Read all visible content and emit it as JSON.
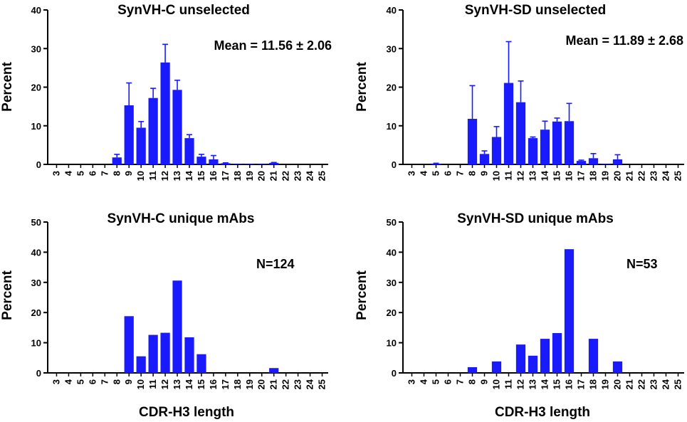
{
  "colors": {
    "bar": "#1a1aff",
    "axis": "#000000"
  },
  "chart_data": [
    {
      "type": "bar",
      "title": "SynVH-C unselected",
      "ylabel": "Percent",
      "xlabel": "",
      "ylim": [
        0,
        40
      ],
      "yticks": [
        0,
        10,
        20,
        30,
        40
      ],
      "annotation": "Mean = 11.56 ± 2.06",
      "categories": [
        "3",
        "4",
        "5",
        "6",
        "7",
        "8",
        "9",
        "10",
        "11",
        "12",
        "13",
        "14",
        "15",
        "16",
        "17",
        "18",
        "19",
        "20",
        "21",
        "22",
        "23",
        "24",
        "25"
      ],
      "values": [
        0,
        0,
        0,
        0,
        0,
        1.8,
        15.3,
        9.5,
        17.2,
        26.4,
        19.3,
        6.8,
        2.0,
        1.3,
        0.3,
        0.1,
        0.1,
        0.1,
        0.4,
        0,
        0,
        0,
        0
      ],
      "errors": [
        0,
        0,
        0,
        0,
        0,
        0.8,
        5.8,
        1.6,
        2.5,
        4.7,
        2.5,
        0.9,
        0.6,
        1.0,
        0.1,
        0,
        0,
        0,
        0.1,
        0,
        0,
        0,
        0
      ]
    },
    {
      "type": "bar",
      "title": "SynVH-SD unselected",
      "ylabel": "Percent",
      "xlabel": "",
      "ylim": [
        0,
        40
      ],
      "yticks": [
        0,
        10,
        20,
        30,
        40
      ],
      "annotation": "Mean = 11.89 ± 2.68",
      "categories": [
        "3",
        "4",
        "5",
        "6",
        "7",
        "8",
        "9",
        "10",
        "11",
        "12",
        "13",
        "14",
        "15",
        "16",
        "17",
        "18",
        "19",
        "20",
        "21",
        "22",
        "23",
        "24",
        "25"
      ],
      "values": [
        0,
        0,
        0.2,
        0,
        0,
        11.8,
        2.7,
        7.1,
        21.1,
        16.1,
        6.8,
        9.0,
        11.1,
        11.2,
        0.9,
        1.6,
        0.1,
        1.3,
        0,
        0,
        0,
        0,
        0
      ],
      "errors": [
        0,
        0,
        0.1,
        0,
        0,
        8.6,
        0.8,
        2.7,
        10.7,
        5.5,
        0.3,
        2.2,
        0.9,
        4.6,
        0.2,
        1.2,
        0,
        1.2,
        0,
        0,
        0,
        0,
        0
      ]
    },
    {
      "type": "bar",
      "title": "SynVH-C unique mAbs",
      "ylabel": "Percent",
      "xlabel": "CDR-H3 length",
      "ylim": [
        0,
        50
      ],
      "yticks": [
        0,
        10,
        20,
        30,
        40,
        50
      ],
      "annotation": "N=124",
      "categories": [
        "3",
        "4",
        "5",
        "6",
        "7",
        "8",
        "9",
        "10",
        "11",
        "12",
        "13",
        "14",
        "15",
        "16",
        "17",
        "18",
        "19",
        "20",
        "21",
        "22",
        "23",
        "24",
        "25"
      ],
      "values": [
        0,
        0,
        0,
        0,
        0,
        0,
        18.8,
        5.5,
        12.6,
        13.3,
        30.6,
        11.8,
        6.2,
        0,
        0,
        0,
        0,
        0,
        1.6,
        0,
        0,
        0,
        0
      ],
      "errors": []
    },
    {
      "type": "bar",
      "title": "SynVH-SD unique mAbs",
      "ylabel": "Percent",
      "xlabel": "CDR-H3 length",
      "ylim": [
        0,
        50
      ],
      "yticks": [
        0,
        10,
        20,
        30,
        40,
        50
      ],
      "annotation": "N=53",
      "categories": [
        "3",
        "4",
        "5",
        "6",
        "7",
        "8",
        "9",
        "10",
        "11",
        "12",
        "13",
        "14",
        "15",
        "16",
        "17",
        "18",
        "19",
        "20",
        "21",
        "22",
        "23",
        "24",
        "25"
      ],
      "values": [
        0,
        0,
        0,
        0,
        0,
        1.9,
        0,
        3.8,
        0,
        9.4,
        5.7,
        11.3,
        13.2,
        41.0,
        0,
        11.3,
        0,
        3.8,
        0,
        0,
        0,
        0,
        0
      ],
      "errors": []
    }
  ]
}
